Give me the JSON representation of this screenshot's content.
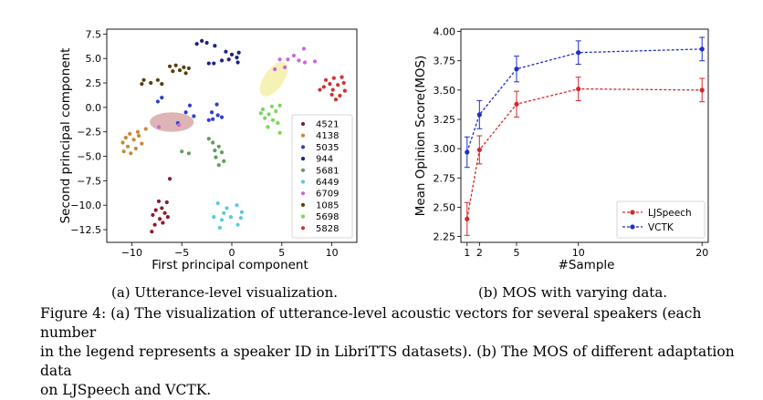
{
  "chart_data": [
    {
      "type": "scatter",
      "xlabel": "First principal component",
      "ylabel": "Second principal component",
      "xlim": [
        -12.5,
        12.5
      ],
      "ylim": [
        -13.8,
        8.0
      ],
      "x_ticks": [
        -10,
        -5,
        0,
        5,
        10
      ],
      "x_tick_labels": [
        "−10",
        "−5",
        "0",
        "5",
        "10"
      ],
      "y_ticks": [
        7.5,
        5.0,
        2.5,
        0.0,
        -2.5,
        -5.0,
        -7.5,
        -10.0,
        -12.5
      ],
      "y_tick_labels": [
        "7.5",
        "5.0",
        "2.5",
        "0.0",
        "−2.5",
        "−5.0",
        "−7.5",
        "−10.0",
        "−12.5"
      ],
      "grid": false,
      "legend_position": "bottom-right",
      "series": [
        {
          "name": "4521",
          "color": "#8b1a2b",
          "points": [
            [
              -6.2,
              -7.3
            ],
            [
              -7.3,
              -9.6
            ],
            [
              -6.5,
              -9.7
            ],
            [
              -7.0,
              -10.3
            ],
            [
              -7.6,
              -10.5
            ],
            [
              -6.7,
              -10.8
            ],
            [
              -7.9,
              -11.0
            ],
            [
              -6.4,
              -11.2
            ],
            [
              -7.2,
              -11.4
            ],
            [
              -6.9,
              -11.8
            ],
            [
              -7.7,
              -12.0
            ],
            [
              -8.0,
              -12.7
            ]
          ]
        },
        {
          "name": "4138",
          "color": "#c48a3a",
          "points": [
            [
              -10.2,
              -2.7
            ],
            [
              -9.4,
              -2.5
            ],
            [
              -10.6,
              -3.1
            ],
            [
              -9.8,
              -3.3
            ],
            [
              -10.9,
              -3.6
            ],
            [
              -9.0,
              -3.7
            ],
            [
              -10.4,
              -4.0
            ],
            [
              -9.6,
              -4.2
            ],
            [
              -10.8,
              -4.5
            ],
            [
              -10.1,
              -4.7
            ],
            [
              -9.3,
              -2.9
            ],
            [
              -8.6,
              -2.2
            ]
          ]
        },
        {
          "name": "5035",
          "color": "#2e3fcc",
          "points": [
            [
              -7.0,
              1.0
            ],
            [
              -7.4,
              0.6
            ],
            [
              -4.2,
              0.2
            ],
            [
              -4.6,
              -0.5
            ],
            [
              -3.8,
              -0.9
            ],
            [
              -1.5,
              0.3
            ],
            [
              -2.0,
              -0.5
            ],
            [
              -1.4,
              -0.8
            ],
            [
              -1.9,
              -1.2
            ],
            [
              -2.3,
              -1.3
            ],
            [
              -1.0,
              -1.0
            ],
            [
              -5.4,
              -1.6
            ]
          ]
        },
        {
          "name": "944",
          "color": "#1a237e",
          "points": [
            [
              -3.5,
              6.5
            ],
            [
              -3.0,
              6.8
            ],
            [
              -2.5,
              6.6
            ],
            [
              -1.7,
              6.3
            ],
            [
              -0.6,
              5.7
            ],
            [
              0.0,
              5.4
            ],
            [
              0.7,
              5.6
            ],
            [
              0.5,
              5.1
            ],
            [
              -0.3,
              4.9
            ],
            [
              -1.0,
              4.8
            ],
            [
              -1.8,
              4.5
            ],
            [
              -2.3,
              4.5
            ],
            [
              0.6,
              4.6
            ]
          ]
        },
        {
          "name": "5681",
          "color": "#5f9e5a",
          "points": [
            [
              -5.0,
              -4.5
            ],
            [
              -4.3,
              -4.7
            ],
            [
              -2.3,
              -3.2
            ],
            [
              -1.9,
              -3.6
            ],
            [
              -1.3,
              -4.0
            ],
            [
              -1.7,
              -4.4
            ],
            [
              -1.0,
              -4.6
            ],
            [
              -1.6,
              -5.1
            ],
            [
              -0.8,
              -5.5
            ],
            [
              -1.3,
              -5.9
            ]
          ]
        },
        {
          "name": "6449",
          "color": "#5bc8de",
          "points": [
            [
              -1.4,
              -9.8
            ],
            [
              -0.5,
              -10.3
            ],
            [
              0.5,
              -10.0
            ],
            [
              1.0,
              -10.7
            ],
            [
              -0.8,
              -10.8
            ],
            [
              -1.8,
              -11.2
            ],
            [
              -1.0,
              -11.5
            ],
            [
              -0.1,
              -11.2
            ],
            [
              0.9,
              -11.3
            ],
            [
              0.6,
              -12.0
            ],
            [
              -1.2,
              -12.3
            ]
          ]
        },
        {
          "name": "6709",
          "color": "#cc66dd",
          "points": [
            [
              -7.3,
              -2.0
            ],
            [
              -5.3,
              -1.8
            ],
            [
              7.2,
              6.0
            ],
            [
              6.2,
              5.3
            ],
            [
              5.6,
              4.9
            ],
            [
              6.7,
              4.8
            ],
            [
              7.3,
              4.6
            ],
            [
              8.3,
              4.7
            ],
            [
              4.8,
              4.9
            ],
            [
              5.3,
              4.1
            ],
            [
              4.3,
              3.9
            ]
          ]
        },
        {
          "name": "1085",
          "color": "#5a4010",
          "points": [
            [
              -6.2,
              4.2
            ],
            [
              -5.6,
              4.3
            ],
            [
              -4.8,
              4.1
            ],
            [
              -4.3,
              4.0
            ],
            [
              -5.2,
              3.8
            ],
            [
              -5.9,
              3.7
            ],
            [
              -4.6,
              3.5
            ],
            [
              -8.8,
              2.8
            ],
            [
              -9.0,
              2.4
            ],
            [
              -8.1,
              2.5
            ],
            [
              -7.4,
              2.8
            ],
            [
              -7.0,
              2.4
            ]
          ]
        },
        {
          "name": "5698",
          "color": "#7bd65a",
          "points": [
            [
              3.1,
              -0.2
            ],
            [
              4.0,
              0.1
            ],
            [
              4.8,
              0.2
            ],
            [
              2.9,
              -0.6
            ],
            [
              3.7,
              -0.7
            ],
            [
              4.4,
              -0.4
            ],
            [
              3.3,
              -1.1
            ],
            [
              4.1,
              -1.3
            ],
            [
              4.6,
              -1.6
            ],
            [
              3.6,
              -2.0
            ],
            [
              4.8,
              -2.6
            ]
          ]
        },
        {
          "name": "5828",
          "color": "#d23030",
          "points": [
            [
              10.2,
              3.0
            ],
            [
              11.0,
              3.1
            ],
            [
              9.4,
              2.8
            ],
            [
              9.8,
              2.4
            ],
            [
              10.6,
              2.3
            ],
            [
              11.2,
              2.5
            ],
            [
              9.2,
              2.1
            ],
            [
              10.1,
              1.8
            ],
            [
              11.3,
              1.7
            ],
            [
              10.0,
              1.3
            ],
            [
              10.8,
              1.2
            ],
            [
              8.8,
              1.8
            ],
            [
              10.4,
              0.8
            ]
          ]
        }
      ],
      "highlight_ellipses": [
        {
          "color": "#d8a8a8",
          "cx": -6.0,
          "cy": -1.5,
          "rx": 2.2,
          "ry": 1.0,
          "angle": 0
        },
        {
          "color": "#f5f0a8",
          "cx": 4.2,
          "cy": 2.9,
          "rx": 2.0,
          "ry": 1.0,
          "angle": -55
        }
      ]
    },
    {
      "type": "line",
      "xlabel": "#Sample",
      "ylabel": "Mean Opinion Score(MOS)",
      "x": [
        1,
        2,
        5,
        10,
        20
      ],
      "xlim": [
        0.5,
        20.5
      ],
      "ylim": [
        2.2,
        4.02
      ],
      "x_ticks": [
        1,
        2,
        5,
        10,
        20
      ],
      "y_ticks": [
        2.25,
        2.5,
        2.75,
        3.0,
        3.25,
        3.5,
        3.75,
        4.0
      ],
      "y_tick_labels": [
        "2.25",
        "2.50",
        "2.75",
        "3.00",
        "3.25",
        "3.50",
        "3.75",
        "4.00"
      ],
      "grid": false,
      "legend_position": "bottom-right",
      "series": [
        {
          "name": "LJSpeech",
          "color": "#d62728",
          "values": [
            2.4,
            2.99,
            3.38,
            3.51,
            3.5
          ],
          "errors": [
            0.14,
            0.12,
            0.11,
            0.1,
            0.1
          ]
        },
        {
          "name": "VCTK",
          "color": "#1f2fc8",
          "values": [
            2.97,
            3.29,
            3.68,
            3.82,
            3.85
          ],
          "errors": [
            0.13,
            0.12,
            0.11,
            0.1,
            0.1
          ]
        }
      ]
    }
  ],
  "captions": {
    "sub_a": "(a) Utterance-level visualization.",
    "sub_b": "(b) MOS with varying data.",
    "figure_line1": "Figure 4: (a) The visualization of utterance-level acoustic vectors for several speakers (each number",
    "figure_line2": "in the legend represents a speaker ID in LibriTTS datasets). (b) The MOS of different adaptation data",
    "figure_line3": "on LJSpeech and VCTK."
  }
}
